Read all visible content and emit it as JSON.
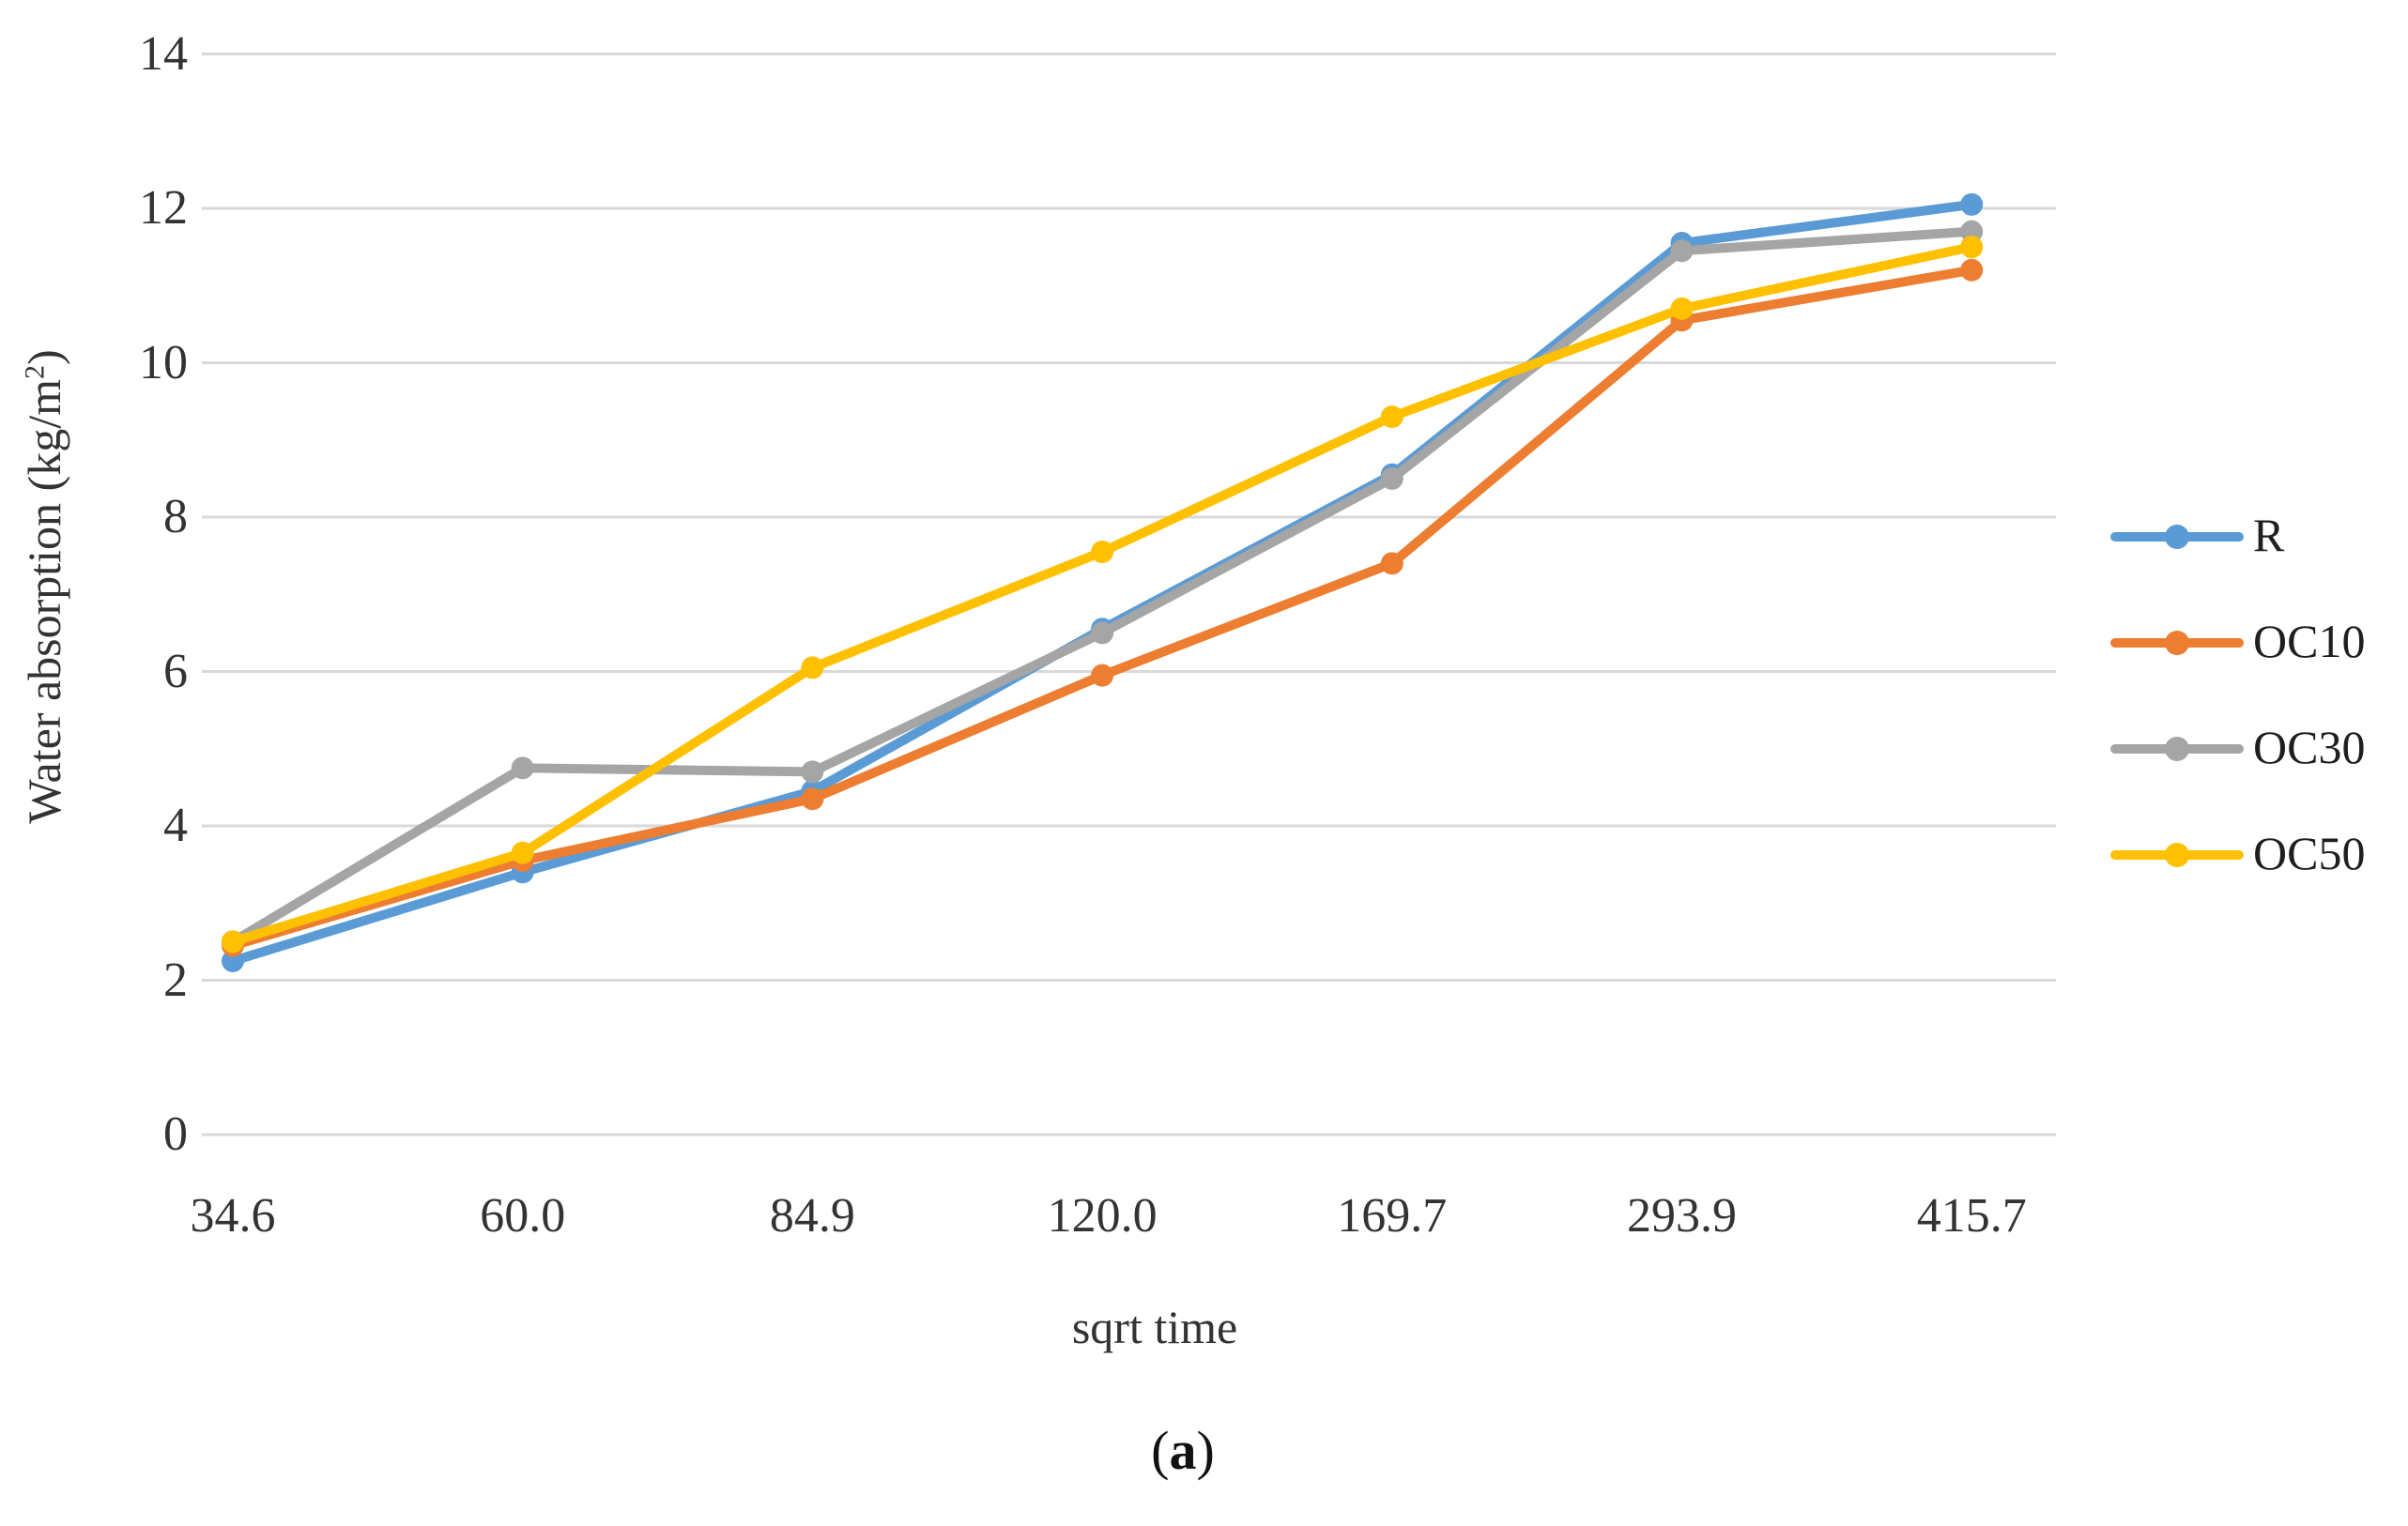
{
  "figure": {
    "caption_open": "(",
    "caption_letter": "a",
    "caption_close": ")"
  },
  "axis": {
    "x_title": "sqrt time",
    "y_title_prefix": "Water absorption (kg/m",
    "y_title_sup": "2",
    "y_title_suffix": ")"
  },
  "colors": {
    "gridline": "#D9D9D9",
    "tick_text": "#333333",
    "series_blue": "#5B9BD5",
    "series_orange": "#ED7D31",
    "series_gray": "#A5A5A5",
    "series_gold": "#FFC000"
  },
  "chart_data": {
    "type": "line",
    "title": "",
    "xlabel": "sqrt time",
    "ylabel": "Water absorption (kg/m²)",
    "categories": [
      "34.6",
      "60.0",
      "84.9",
      "120.0",
      "169.7",
      "293.9",
      "415.7"
    ],
    "series": [
      {
        "name": "R",
        "color": "#5B9BD5",
        "values": [
          2.25,
          3.4,
          4.45,
          6.55,
          8.55,
          11.55,
          12.05
        ]
      },
      {
        "name": "OC10",
        "color": "#ED7D31",
        "values": [
          2.45,
          3.55,
          4.35,
          5.95,
          7.4,
          10.55,
          11.2
        ]
      },
      {
        "name": "OC30",
        "color": "#A5A5A5",
        "values": [
          2.5,
          4.75,
          4.7,
          6.5,
          8.5,
          11.45,
          11.7
        ]
      },
      {
        "name": "OC50",
        "color": "#FFC000",
        "values": [
          2.5,
          3.65,
          6.05,
          7.55,
          9.3,
          10.7,
          11.5
        ]
      }
    ],
    "ylim": [
      0,
      14
    ],
    "yticks": [
      0,
      2,
      4,
      6,
      8,
      10,
      12,
      14
    ],
    "grid": "horizontal",
    "legend_position": "right",
    "marker": "circle"
  }
}
